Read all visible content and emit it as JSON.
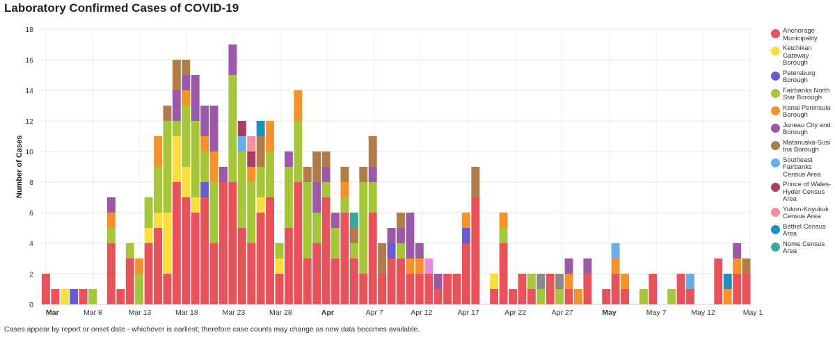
{
  "title": "Laboratory Confirmed Cases of COVID-19",
  "footnote": "Cases appear by report or onset date - whichever is earliest; therefore case counts may change as new data becomes available.",
  "chart_data": {
    "type": "bar",
    "stacked": true,
    "ylabel": "Number of Cases",
    "ylim": [
      0,
      18
    ],
    "yticks": [
      0,
      2,
      4,
      6,
      8,
      10,
      12,
      14,
      16,
      18
    ],
    "grid": true,
    "legend_position": "right",
    "x_tick_labels": [
      {
        "label": "Mar",
        "bold": true
      },
      {
        "label": "Mar 8",
        "bold": false
      },
      {
        "label": "Mar 13",
        "bold": false
      },
      {
        "label": "Mar 18",
        "bold": false
      },
      {
        "label": "Mar 23",
        "bold": false
      },
      {
        "label": "Mar 28",
        "bold": false
      },
      {
        "label": "Apr",
        "bold": true
      },
      {
        "label": "Apr 7",
        "bold": false
      },
      {
        "label": "Apr 12",
        "bold": false
      },
      {
        "label": "Apr 17",
        "bold": false
      },
      {
        "label": "Apr 22",
        "bold": false
      },
      {
        "label": "Apr 27",
        "bold": false
      },
      {
        "label": "May",
        "bold": true
      },
      {
        "label": "May 7",
        "bold": false
      },
      {
        "label": "May 12",
        "bold": false
      },
      {
        "label": "May 1",
        "bold": false
      }
    ],
    "series_colors": {
      "Anchorage Municipality": "#e8525a",
      "Ketchikan Gateway Borough": "#f9de3c",
      "Petersburg Borough": "#6a5acd",
      "Fairbanks North Star Borough": "#a6c63a",
      "Kenai Peninsula Borough": "#f7922a",
      "Juneau City and Borough": "#9b59a8",
      "Matanuska-Susitna Borough": "#b07d4a",
      "Southeast Fairbanks Census Area": "#6aaee8",
      "Prince of Wales-Hyder Census Area": "#a83e64",
      "Yukon-Koyukuk Census Area": "#f38fa0",
      "Bethel Census Area": "#1f8fc0",
      "Nome Census Area": "#3aa89a",
      "Unknown (gray)": "#8a8a8a",
      "Unknown (pink)": "#f08ad8"
    },
    "legend": [
      {
        "name": "Anchorage Municipality",
        "label": "Anchorage Municipality"
      },
      {
        "name": "Ketchikan Gateway Borough",
        "label": "Ketchikan Gateway Borough"
      },
      {
        "name": "Petersburg Borough",
        "label": "Petersburg Borough"
      },
      {
        "name": "Fairbanks North Star Borough",
        "label": "Fairbanks North Star Borough"
      },
      {
        "name": "Kenai Peninsula Borough",
        "label": "Kenai Peninsula Borough"
      },
      {
        "name": "Juneau City and Borough",
        "label": "Juneau City and Borough"
      },
      {
        "name": "Matanuska-Susitna Borough",
        "label": "Matanuska-Susi tna Borough"
      },
      {
        "name": "Southeast Fairbanks Census Area",
        "label": "Southeast Fairbanks Census Area"
      },
      {
        "name": "Prince of Wales-Hyder Census Area",
        "label": "Prince of Wales-Hyder Census Area"
      },
      {
        "name": "Yukon-Koyukuk Census Area",
        "label": "Yukon-Koyukuk Census Area"
      },
      {
        "name": "Bethel Census Area",
        "label": "Bethel Census Area"
      },
      {
        "name": "Nome Census Area",
        "label": "Nome Census Area"
      }
    ],
    "bars": [
      [
        {
          "s": "Anchorage Municipality",
          "v": 2
        }
      ],
      [
        {
          "s": "Anchorage Municipality",
          "v": 1
        }
      ],
      [
        {
          "s": "Ketchikan Gateway Borough",
          "v": 1
        }
      ],
      [
        {
          "s": "Petersburg Borough",
          "v": 1
        }
      ],
      [
        {
          "s": "Anchorage Municipality",
          "v": 1
        }
      ],
      [
        {
          "s": "Fairbanks North Star Borough",
          "v": 1
        }
      ],
      [],
      [
        {
          "s": "Anchorage Municipality",
          "v": 4
        },
        {
          "s": "Fairbanks North Star Borough",
          "v": 1
        },
        {
          "s": "Kenai Peninsula Borough",
          "v": 1
        },
        {
          "s": "Juneau City and Borough",
          "v": 1
        }
      ],
      [
        {
          "s": "Anchorage Municipality",
          "v": 1
        }
      ],
      [
        {
          "s": "Anchorage Municipality",
          "v": 3
        },
        {
          "s": "Fairbanks North Star Borough",
          "v": 1
        }
      ],
      [
        {
          "s": "Fairbanks North Star Borough",
          "v": 2
        },
        {
          "s": "Kenai Peninsula Borough",
          "v": 1
        }
      ],
      [
        {
          "s": "Anchorage Municipality",
          "v": 4
        },
        {
          "s": "Ketchikan Gateway Borough",
          "v": 1
        },
        {
          "s": "Fairbanks North Star Borough",
          "v": 2
        }
      ],
      [
        {
          "s": "Anchorage Municipality",
          "v": 5
        },
        {
          "s": "Ketchikan Gateway Borough",
          "v": 1
        },
        {
          "s": "Fairbanks North Star Borough",
          "v": 3
        },
        {
          "s": "Kenai Peninsula Borough",
          "v": 2
        }
      ],
      [
        {
          "s": "Anchorage Municipality",
          "v": 2
        },
        {
          "s": "Ketchikan Gateway Borough",
          "v": 4
        },
        {
          "s": "Fairbanks North Star Borough",
          "v": 6
        },
        {
          "s": "Matanuska-Susitna Borough",
          "v": 1
        }
      ],
      [
        {
          "s": "Anchorage Municipality",
          "v": 8
        },
        {
          "s": "Ketchikan Gateway Borough",
          "v": 3
        },
        {
          "s": "Fairbanks North Star Borough",
          "v": 1
        },
        {
          "s": "Juneau City and Borough",
          "v": 2
        },
        {
          "s": "Matanuska-Susitna Borough",
          "v": 2
        }
      ],
      [
        {
          "s": "Anchorage Municipality",
          "v": 7
        },
        {
          "s": "Ketchikan Gateway Borough",
          "v": 2
        },
        {
          "s": "Fairbanks North Star Borough",
          "v": 4
        },
        {
          "s": "Kenai Peninsula Borough",
          "v": 1
        },
        {
          "s": "Juneau City and Borough",
          "v": 1
        },
        {
          "s": "Matanuska-Susitna Borough",
          "v": 1
        }
      ],
      [
        {
          "s": "Anchorage Municipality",
          "v": 6
        },
        {
          "s": "Ketchikan Gateway Borough",
          "v": 1
        },
        {
          "s": "Fairbanks North Star Borough",
          "v": 5
        },
        {
          "s": "Juneau City and Borough",
          "v": 3
        }
      ],
      [
        {
          "s": "Anchorage Municipality",
          "v": 7
        },
        {
          "s": "Petersburg Borough",
          "v": 1
        },
        {
          "s": "Fairbanks North Star Borough",
          "v": 2
        },
        {
          "s": "Kenai Peninsula Borough",
          "v": 1
        },
        {
          "s": "Juneau City and Borough",
          "v": 2
        }
      ],
      [
        {
          "s": "Anchorage Municipality",
          "v": 4
        },
        {
          "s": "Fairbanks North Star Borough",
          "v": 4
        },
        {
          "s": "Kenai Peninsula Borough",
          "v": 2
        },
        {
          "s": "Juneau City and Borough",
          "v": 3
        }
      ],
      [
        {
          "s": "Anchorage Municipality",
          "v": 8
        },
        {
          "s": "Juneau City and Borough",
          "v": 1
        }
      ],
      [
        {
          "s": "Anchorage Municipality",
          "v": 8
        },
        {
          "s": "Fairbanks North Star Borough",
          "v": 7
        },
        {
          "s": "Juneau City and Borough",
          "v": 2
        }
      ],
      [
        {
          "s": "Anchorage Municipality",
          "v": 5
        },
        {
          "s": "Fairbanks North Star Borough",
          "v": 5
        },
        {
          "s": "Southeast Fairbanks Census Area",
          "v": 1
        },
        {
          "s": "Prince of Wales-Hyder Census Area",
          "v": 1
        }
      ],
      [
        {
          "s": "Anchorage Municipality",
          "v": 4
        },
        {
          "s": "Fairbanks North Star Borough",
          "v": 4
        },
        {
          "s": "Kenai Peninsula Borough",
          "v": 1
        },
        {
          "s": "Prince of Wales-Hyder Census Area",
          "v": 1
        },
        {
          "s": "Yukon-Koyukuk Census Area",
          "v": 1
        }
      ],
      [
        {
          "s": "Anchorage Municipality",
          "v": 6
        },
        {
          "s": "Ketchikan Gateway Borough",
          "v": 1
        },
        {
          "s": "Fairbanks North Star Borough",
          "v": 2
        },
        {
          "s": "Matanuska-Susitna Borough",
          "v": 2
        },
        {
          "s": "Bethel Census Area",
          "v": 1
        }
      ],
      [
        {
          "s": "Anchorage Municipality",
          "v": 7
        },
        {
          "s": "Fairbanks North Star Borough",
          "v": 3
        },
        {
          "s": "Kenai Peninsula Borough",
          "v": 2
        }
      ],
      [
        {
          "s": "Anchorage Municipality",
          "v": 2
        },
        {
          "s": "Ketchikan Gateway Borough",
          "v": 1
        },
        {
          "s": "Fairbanks North Star Borough",
          "v": 1
        }
      ],
      [
        {
          "s": "Anchorage Municipality",
          "v": 5
        },
        {
          "s": "Fairbanks North Star Borough",
          "v": 4
        },
        {
          "s": "Juneau City and Borough",
          "v": 1
        }
      ],
      [
        {
          "s": "Anchorage Municipality",
          "v": 8
        },
        {
          "s": "Fairbanks North Star Borough",
          "v": 4
        },
        {
          "s": "Kenai Peninsula Borough",
          "v": 2
        }
      ],
      [
        {
          "s": "Anchorage Municipality",
          "v": 3
        },
        {
          "s": "Fairbanks North Star Borough",
          "v": 5
        },
        {
          "s": "Matanuska-Susitna Borough",
          "v": 1
        }
      ],
      [
        {
          "s": "Anchorage Municipality",
          "v": 4
        },
        {
          "s": "Fairbanks North Star Borough",
          "v": 2
        },
        {
          "s": "Juneau City and Borough",
          "v": 2
        },
        {
          "s": "Matanuska-Susitna Borough",
          "v": 2
        }
      ],
      [
        {
          "s": "Anchorage Municipality",
          "v": 7
        },
        {
          "s": "Fairbanks North Star Borough",
          "v": 1
        },
        {
          "s": "Juneau City and Borough",
          "v": 1
        },
        {
          "s": "Matanuska-Susitna Borough",
          "v": 1
        }
      ],
      [
        {
          "s": "Anchorage Municipality",
          "v": 3
        },
        {
          "s": "Fairbanks North Star Borough",
          "v": 2
        },
        {
          "s": "Juneau City and Borough",
          "v": 1
        }
      ],
      [
        {
          "s": "Anchorage Municipality",
          "v": 6
        },
        {
          "s": "Fairbanks North Star Borough",
          "v": 1
        },
        {
          "s": "Kenai Peninsula Borough",
          "v": 1
        },
        {
          "s": "Matanuska-Susitna Borough",
          "v": 1
        }
      ],
      [
        {
          "s": "Anchorage Municipality",
          "v": 3
        },
        {
          "s": "Fairbanks North Star Borough",
          "v": 1
        },
        {
          "s": "Matanuska-Susitna Borough",
          "v": 1
        },
        {
          "s": "Nome Census Area",
          "v": 1
        }
      ],
      [
        {
          "s": "Anchorage Municipality",
          "v": 2
        },
        {
          "s": "Fairbanks North Star Borough",
          "v": 6
        },
        {
          "s": "Matanuska-Susitna Borough",
          "v": 1
        }
      ],
      [
        {
          "s": "Anchorage Municipality",
          "v": 6
        },
        {
          "s": "Fairbanks North Star Borough",
          "v": 2
        },
        {
          "s": "Juneau City and Borough",
          "v": 1
        },
        {
          "s": "Matanuska-Susitna Borough",
          "v": 2
        }
      ],
      [
        {
          "s": "Anchorage Municipality",
          "v": 2
        },
        {
          "s": "Matanuska-Susitna Borough",
          "v": 2
        }
      ],
      [
        {
          "s": "Anchorage Municipality",
          "v": 3
        },
        {
          "s": "Petersburg Borough",
          "v": 1
        },
        {
          "s": "Juneau City and Borough",
          "v": 1
        }
      ],
      [
        {
          "s": "Anchorage Municipality",
          "v": 3
        },
        {
          "s": "Fairbanks North Star Borough",
          "v": 1
        },
        {
          "s": "Juneau City and Borough",
          "v": 1
        },
        {
          "s": "Matanuska-Susitna Borough",
          "v": 1
        }
      ],
      [
        {
          "s": "Anchorage Municipality",
          "v": 2
        },
        {
          "s": "Kenai Peninsula Borough",
          "v": 1
        },
        {
          "s": "Juneau City and Borough",
          "v": 3
        }
      ],
      [
        {
          "s": "Anchorage Municipality",
          "v": 2
        },
        {
          "s": "Kenai Peninsula Borough",
          "v": 1
        },
        {
          "s": "Juneau City and Borough",
          "v": 1
        }
      ],
      [
        {
          "s": "Anchorage Municipality",
          "v": 2
        },
        {
          "s": "Unknown (pink)",
          "v": 1
        }
      ],
      [
        {
          "s": "Anchorage Municipality",
          "v": 1
        },
        {
          "s": "Juneau City and Borough",
          "v": 1
        }
      ],
      [
        {
          "s": "Anchorage Municipality",
          "v": 2
        }
      ],
      [
        {
          "s": "Anchorage Municipality",
          "v": 2
        }
      ],
      [
        {
          "s": "Anchorage Municipality",
          "v": 4
        },
        {
          "s": "Petersburg Borough",
          "v": 1
        },
        {
          "s": "Kenai Peninsula Borough",
          "v": 1
        }
      ],
      [
        {
          "s": "Anchorage Municipality",
          "v": 7
        },
        {
          "s": "Matanuska-Susitna Borough",
          "v": 2
        }
      ],
      [],
      [
        {
          "s": "Anchorage Municipality",
          "v": 1
        },
        {
          "s": "Ketchikan Gateway Borough",
          "v": 1
        }
      ],
      [
        {
          "s": "Anchorage Municipality",
          "v": 4
        },
        {
          "s": "Fairbanks North Star Borough",
          "v": 1
        },
        {
          "s": "Kenai Peninsula Borough",
          "v": 1
        }
      ],
      [
        {
          "s": "Anchorage Municipality",
          "v": 1
        }
      ],
      [
        {
          "s": "Anchorage Municipality",
          "v": 2
        }
      ],
      [
        {
          "s": "Anchorage Municipality",
          "v": 1
        },
        {
          "s": "Fairbanks North Star Borough",
          "v": 1
        }
      ],
      [
        {
          "s": "Fairbanks North Star Borough",
          "v": 1
        },
        {
          "s": "Unknown (gray)",
          "v": 1
        }
      ],
      [
        {
          "s": "Anchorage Municipality",
          "v": 2
        }
      ],
      [
        {
          "s": "Fairbanks North Star Borough",
          "v": 1
        },
        {
          "s": "Unknown (gray)",
          "v": 1
        }
      ],
      [
        {
          "s": "Anchorage Municipality",
          "v": 1
        },
        {
          "s": "Kenai Peninsula Borough",
          "v": 1
        },
        {
          "s": "Juneau City and Borough",
          "v": 1
        }
      ],
      [
        {
          "s": "Kenai Peninsula Borough",
          "v": 1
        }
      ],
      [
        {
          "s": "Anchorage Municipality",
          "v": 2
        },
        {
          "s": "Juneau City and Borough",
          "v": 1
        }
      ],
      [],
      [
        {
          "s": "Anchorage Municipality",
          "v": 1
        }
      ],
      [
        {
          "s": "Anchorage Municipality",
          "v": 2
        },
        {
          "s": "Kenai Peninsula Borough",
          "v": 1
        },
        {
          "s": "Southeast Fairbanks Census Area",
          "v": 1
        }
      ],
      [
        {
          "s": "Anchorage Municipality",
          "v": 1
        },
        {
          "s": "Kenai Peninsula Borough",
          "v": 1
        }
      ],
      [],
      [
        {
          "s": "Fairbanks North Star Borough",
          "v": 1
        }
      ],
      [
        {
          "s": "Anchorage Municipality",
          "v": 2
        }
      ],
      [],
      [
        {
          "s": "Fairbanks North Star Borough",
          "v": 1
        }
      ],
      [
        {
          "s": "Anchorage Municipality",
          "v": 2
        }
      ],
      [
        {
          "s": "Anchorage Municipality",
          "v": 1
        },
        {
          "s": "Southeast Fairbanks Census Area",
          "v": 1
        }
      ],
      [],
      [],
      [
        {
          "s": "Anchorage Municipality",
          "v": 3
        }
      ],
      [
        {
          "s": "Kenai Peninsula Borough",
          "v": 1
        },
        {
          "s": "Bethel Census Area",
          "v": 1
        }
      ],
      [
        {
          "s": "Anchorage Municipality",
          "v": 2
        },
        {
          "s": "Kenai Peninsula Borough",
          "v": 1
        },
        {
          "s": "Juneau City and Borough",
          "v": 1
        }
      ],
      [
        {
          "s": "Anchorage Municipality",
          "v": 2
        },
        {
          "s": "Matanuska-Susitna Borough",
          "v": 1
        }
      ]
    ]
  }
}
